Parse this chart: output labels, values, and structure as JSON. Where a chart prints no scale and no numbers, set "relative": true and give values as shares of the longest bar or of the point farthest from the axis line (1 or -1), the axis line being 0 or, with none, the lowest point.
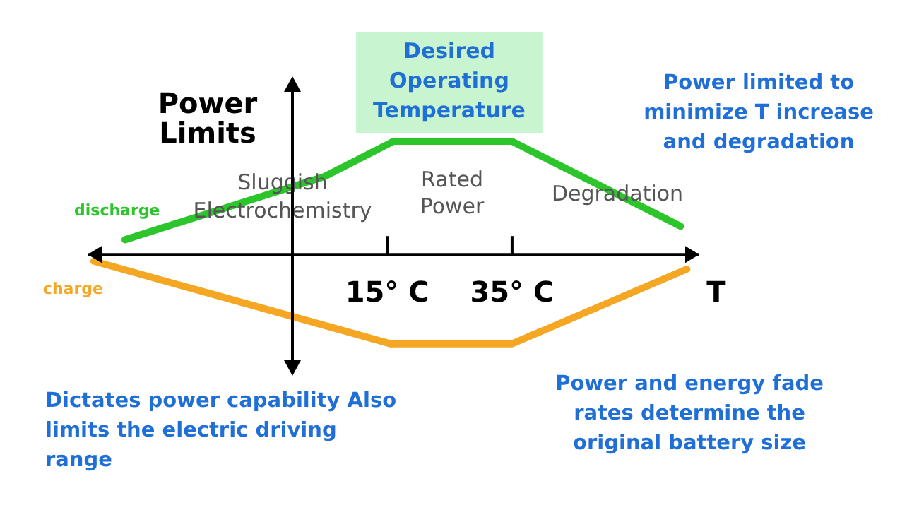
{
  "chart_data": {
    "type": "line",
    "relative": true,
    "xlabel": "T",
    "ylabel": "Power Limits",
    "xlim": [
      -33,
      65
    ],
    "xticks": [
      {
        "value": 15,
        "label": "15° C"
      },
      {
        "value": 35,
        "label": "35° C"
      }
    ],
    "legend": false,
    "grid": false,
    "marker": "none",
    "series": [
      {
        "name": "discharge",
        "color": "#2cc52c",
        "x": [
          -27,
          5,
          16,
          35,
          62
        ],
        "values": [
          0.13,
          0.69,
          1,
          1,
          0.25
        ]
      },
      {
        "name": "charge",
        "color": "#f5a623",
        "x": [
          -32,
          15.5,
          35,
          63
        ],
        "values": [
          -0.06,
          -0.79,
          -0.79,
          -0.13
        ]
      }
    ],
    "annotations": [
      "Desired Operating Temperature",
      "Sluggish Electrochemistry",
      "Rated Power",
      "Degradation",
      "Power limited to minimize T increase and degradation",
      "Dictates power capability Also limits the electric driving range",
      "Power and energy fade rates determine the original battery size"
    ]
  }
}
